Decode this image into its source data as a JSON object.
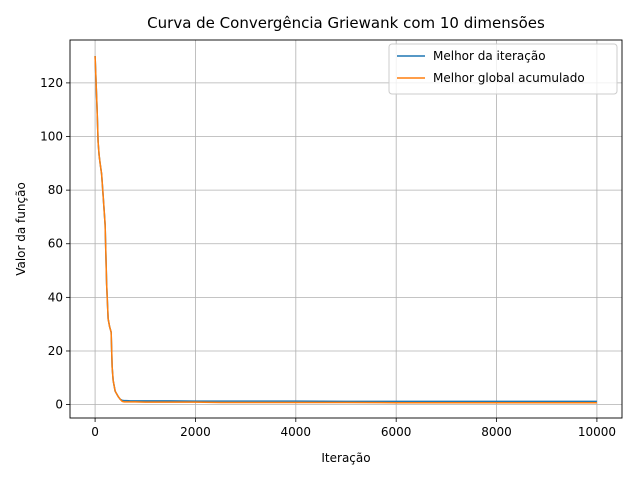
{
  "chart_data": {
    "type": "line",
    "title": "Curva de Convergência Griewank com 10 dimensões",
    "xlabel": "Iteração",
    "ylabel": "Valor da função",
    "xlim": [
      -500,
      10500
    ],
    "ylim": [
      -5,
      136
    ],
    "xticks": [
      0,
      2000,
      4000,
      6000,
      8000,
      10000
    ],
    "yticks": [
      0,
      20,
      40,
      60,
      80,
      100,
      120
    ],
    "grid": true,
    "legend_position": "upper-right",
    "series": [
      {
        "name": "Melhor da iteração",
        "color": "#1f77b4",
        "x": [
          0,
          20,
          40,
          60,
          80,
          100,
          130,
          160,
          200,
          230,
          260,
          290,
          320,
          340,
          360,
          380,
          400,
          430,
          460,
          500,
          540,
          580,
          620,
          700,
          800,
          1000,
          1500,
          2000,
          2500,
          3000,
          4000,
          5000,
          6000,
          7000,
          8000,
          9000,
          9500,
          10000
        ],
        "y": [
          130,
          120,
          110,
          98,
          93,
          90,
          86,
          78,
          67,
          45,
          32,
          29,
          27,
          14,
          9,
          7,
          5,
          4,
          3,
          2,
          1.6,
          1.5,
          1.5,
          1.4,
          1.4,
          1.4,
          1.4,
          1.3,
          1.3,
          1.3,
          1.3,
          1.2,
          1.2,
          1.2,
          1.2,
          1.2,
          1.2,
          1.2
        ]
      },
      {
        "name": "Melhor global acumulado",
        "color": "#ff7f0e",
        "x": [
          0,
          20,
          40,
          60,
          80,
          100,
          130,
          160,
          200,
          230,
          260,
          290,
          320,
          340,
          360,
          380,
          400,
          430,
          460,
          500,
          540,
          580,
          620,
          700,
          800,
          1000,
          1500,
          2000,
          2500,
          3000,
          4000,
          5000,
          6000,
          7000,
          8000,
          9000,
          9500,
          10000
        ],
        "y": [
          130,
          120,
          110,
          98,
          93,
          90,
          86,
          78,
          67,
          45,
          32,
          29,
          27,
          14,
          9,
          7,
          5,
          4,
          3,
          2,
          1.2,
          1.0,
          1.0,
          1.0,
          1.0,
          0.9,
          0.9,
          0.9,
          0.8,
          0.8,
          0.8,
          0.8,
          0.7,
          0.7,
          0.7,
          0.7,
          0.7,
          0.7
        ]
      }
    ]
  }
}
